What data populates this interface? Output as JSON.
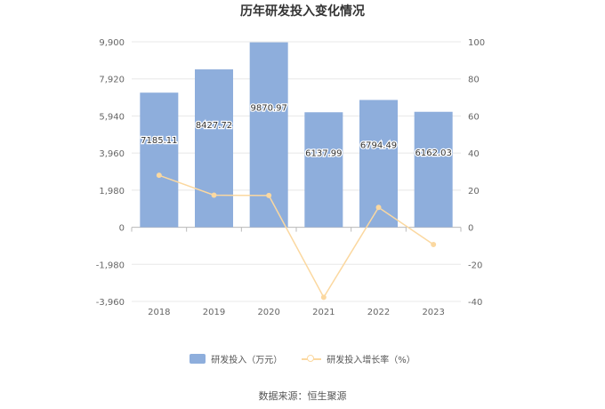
{
  "chart_data": {
    "type": "bar+line",
    "title": "历年研发投入变化情况",
    "categories": [
      "2018",
      "2019",
      "2020",
      "2021",
      "2022",
      "2023"
    ],
    "series": [
      {
        "name": "研发投入（万元）",
        "type": "bar",
        "axis": "left",
        "values": [
          7185.11,
          8427.72,
          9870.97,
          6137.99,
          6794.49,
          6162.03
        ],
        "labels": [
          "7185.11",
          "8427.72",
          "9870.97",
          "6137.99",
          "6794.49",
          "6162.03"
        ]
      },
      {
        "name": "研发投入增长率（%）",
        "type": "line",
        "axis": "right",
        "values": [
          28.0,
          17.3,
          17.1,
          -37.8,
          10.7,
          -9.3
        ]
      }
    ],
    "left_axis": {
      "ylim": [
        -3960,
        9900
      ],
      "ticks": [
        9900,
        7920,
        5940,
        3960,
        1980,
        0,
        -1980,
        -3960
      ],
      "tick_labels": [
        "9,900",
        "7,920",
        "5,940",
        "3,960",
        "1,980",
        "0",
        "-1,980",
        "-3,960"
      ]
    },
    "right_axis": {
      "ylim": [
        -40,
        100
      ],
      "ticks": [
        100,
        80,
        60,
        40,
        20,
        0,
        -20,
        -40
      ],
      "tick_labels": [
        "100",
        "80",
        "60",
        "40",
        "20",
        "0",
        "-20",
        "-40"
      ]
    },
    "grid": true,
    "legend_position": "bottom",
    "colors": {
      "bar": "#8eaedc",
      "line": "#fbd8a0",
      "grid": "#e8e8e8",
      "axis": "#bbbbbb"
    }
  },
  "source_text": "数据来源：恒生聚源"
}
